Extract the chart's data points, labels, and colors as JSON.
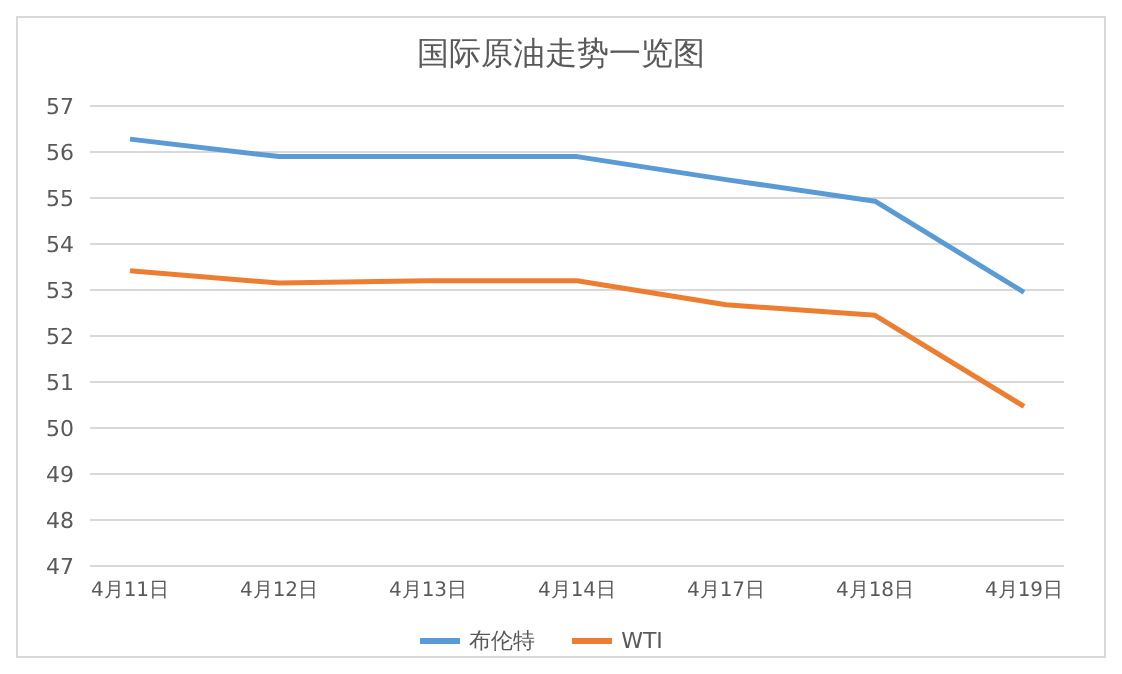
{
  "chart_data": {
    "type": "line",
    "title": "国际原油走势一览图",
    "categories": [
      "4月11日",
      "4月12日",
      "4月13日",
      "4月14日",
      "4月17日",
      "4月18日",
      "4月19日"
    ],
    "series": [
      {
        "name": "布伦特",
        "color": "#5b9bd5",
        "values": [
          56.28,
          55.9,
          55.9,
          55.9,
          55.4,
          54.93,
          52.95
        ]
      },
      {
        "name": "WTI",
        "color": "#ed7d31",
        "values": [
          53.42,
          53.15,
          53.2,
          53.2,
          52.68,
          52.45,
          50.47
        ]
      }
    ],
    "ylim": [
      47,
      57
    ],
    "yticks": [
      47,
      48,
      49,
      50,
      51,
      52,
      53,
      54,
      55,
      56,
      57
    ],
    "grid": "y",
    "legend": "bottom",
    "marker": "none",
    "line_style": "solid"
  }
}
